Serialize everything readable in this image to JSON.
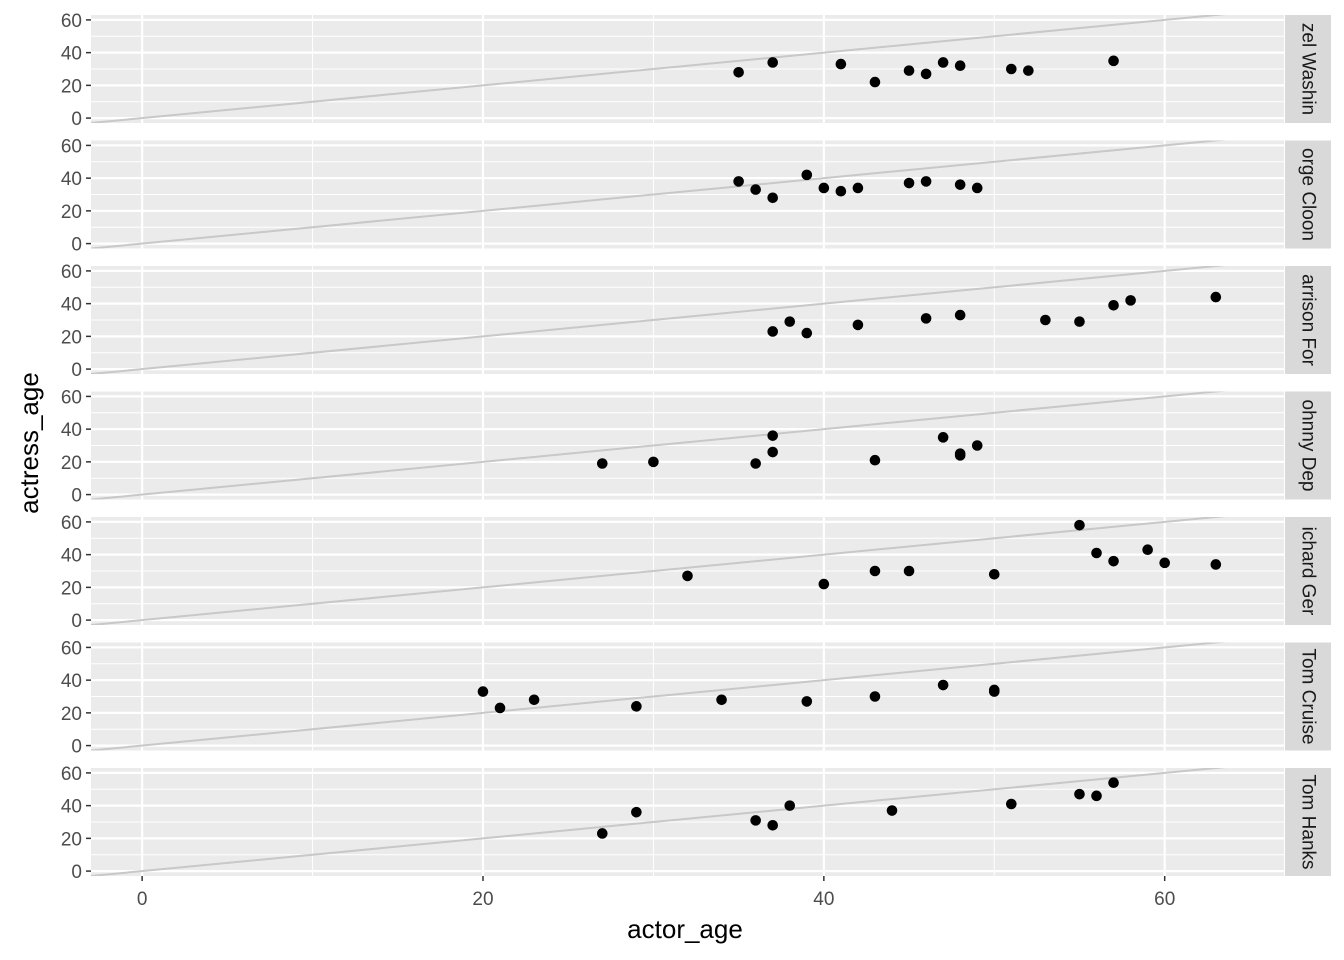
{
  "chart_data": {
    "type": "scatter",
    "facet": "rows",
    "xlabel": "actor_age",
    "ylabel": "actress_age",
    "xlim": [
      -3,
      67
    ],
    "ylim": [
      -3,
      63
    ],
    "x_breaks": [
      0,
      20,
      40,
      60
    ],
    "x_break_labels": [
      "0",
      "20",
      "40",
      "60"
    ],
    "x_minor": [
      10,
      30,
      50
    ],
    "y_breaks": [
      0,
      20,
      40,
      60
    ],
    "y_break_labels": [
      "0",
      "20",
      "40",
      "60"
    ],
    "y_minor": [
      10,
      30,
      50
    ],
    "reference_line": {
      "slope": 1,
      "intercept": 0,
      "color": "#c8c8c8"
    },
    "colors": {
      "panel": "#ebebeb",
      "grid": "#ffffff",
      "strip": "#d9d9d9",
      "point": "#000000"
    },
    "grid": true,
    "legend": "none",
    "panels": [
      {
        "label": "zel Washin",
        "points": [
          [
            35,
            28
          ],
          [
            37,
            34
          ],
          [
            41,
            33
          ],
          [
            43,
            22
          ],
          [
            45,
            29
          ],
          [
            46,
            27
          ],
          [
            47,
            34
          ],
          [
            48,
            32
          ],
          [
            51,
            30
          ],
          [
            52,
            29
          ],
          [
            57,
            35
          ]
        ]
      },
      {
        "label": "orge Cloon",
        "points": [
          [
            35,
            38
          ],
          [
            36,
            33
          ],
          [
            37,
            28
          ],
          [
            39,
            42
          ],
          [
            40,
            34
          ],
          [
            41,
            32
          ],
          [
            42,
            34
          ],
          [
            45,
            37
          ],
          [
            46,
            38
          ],
          [
            48,
            36
          ],
          [
            49,
            34
          ]
        ]
      },
      {
        "label": "arrison For",
        "points": [
          [
            37,
            23
          ],
          [
            38,
            29
          ],
          [
            39,
            22
          ],
          [
            42,
            27
          ],
          [
            46,
            31
          ],
          [
            48,
            33
          ],
          [
            53,
            30
          ],
          [
            55,
            29
          ],
          [
            57,
            39
          ],
          [
            58,
            42
          ],
          [
            63,
            44
          ]
        ]
      },
      {
        "label": "ohnny Dep",
        "points": [
          [
            27,
            19
          ],
          [
            30,
            20
          ],
          [
            36,
            19
          ],
          [
            37,
            26
          ],
          [
            37,
            36
          ],
          [
            43,
            21
          ],
          [
            47,
            35
          ],
          [
            48,
            24
          ],
          [
            48,
            25
          ],
          [
            49,
            30
          ]
        ]
      },
      {
        "label": "ichard Ger",
        "points": [
          [
            32,
            27
          ],
          [
            40,
            22
          ],
          [
            43,
            30
          ],
          [
            45,
            30
          ],
          [
            50,
            28
          ],
          [
            55,
            58
          ],
          [
            56,
            41
          ],
          [
            57,
            36
          ],
          [
            59,
            43
          ],
          [
            60,
            35
          ],
          [
            63,
            34
          ]
        ]
      },
      {
        "label": "Tom Cruise",
        "points": [
          [
            20,
            33
          ],
          [
            21,
            23
          ],
          [
            23,
            28
          ],
          [
            29,
            24
          ],
          [
            34,
            28
          ],
          [
            39,
            27
          ],
          [
            43,
            30
          ],
          [
            47,
            37
          ],
          [
            50,
            33
          ],
          [
            50,
            34
          ]
        ]
      },
      {
        "label": "Tom Hanks",
        "points": [
          [
            27,
            23
          ],
          [
            29,
            36
          ],
          [
            36,
            31
          ],
          [
            37,
            28
          ],
          [
            38,
            40
          ],
          [
            44,
            37
          ],
          [
            51,
            41
          ],
          [
            55,
            47
          ],
          [
            56,
            46
          ],
          [
            57,
            54
          ]
        ]
      }
    ]
  }
}
